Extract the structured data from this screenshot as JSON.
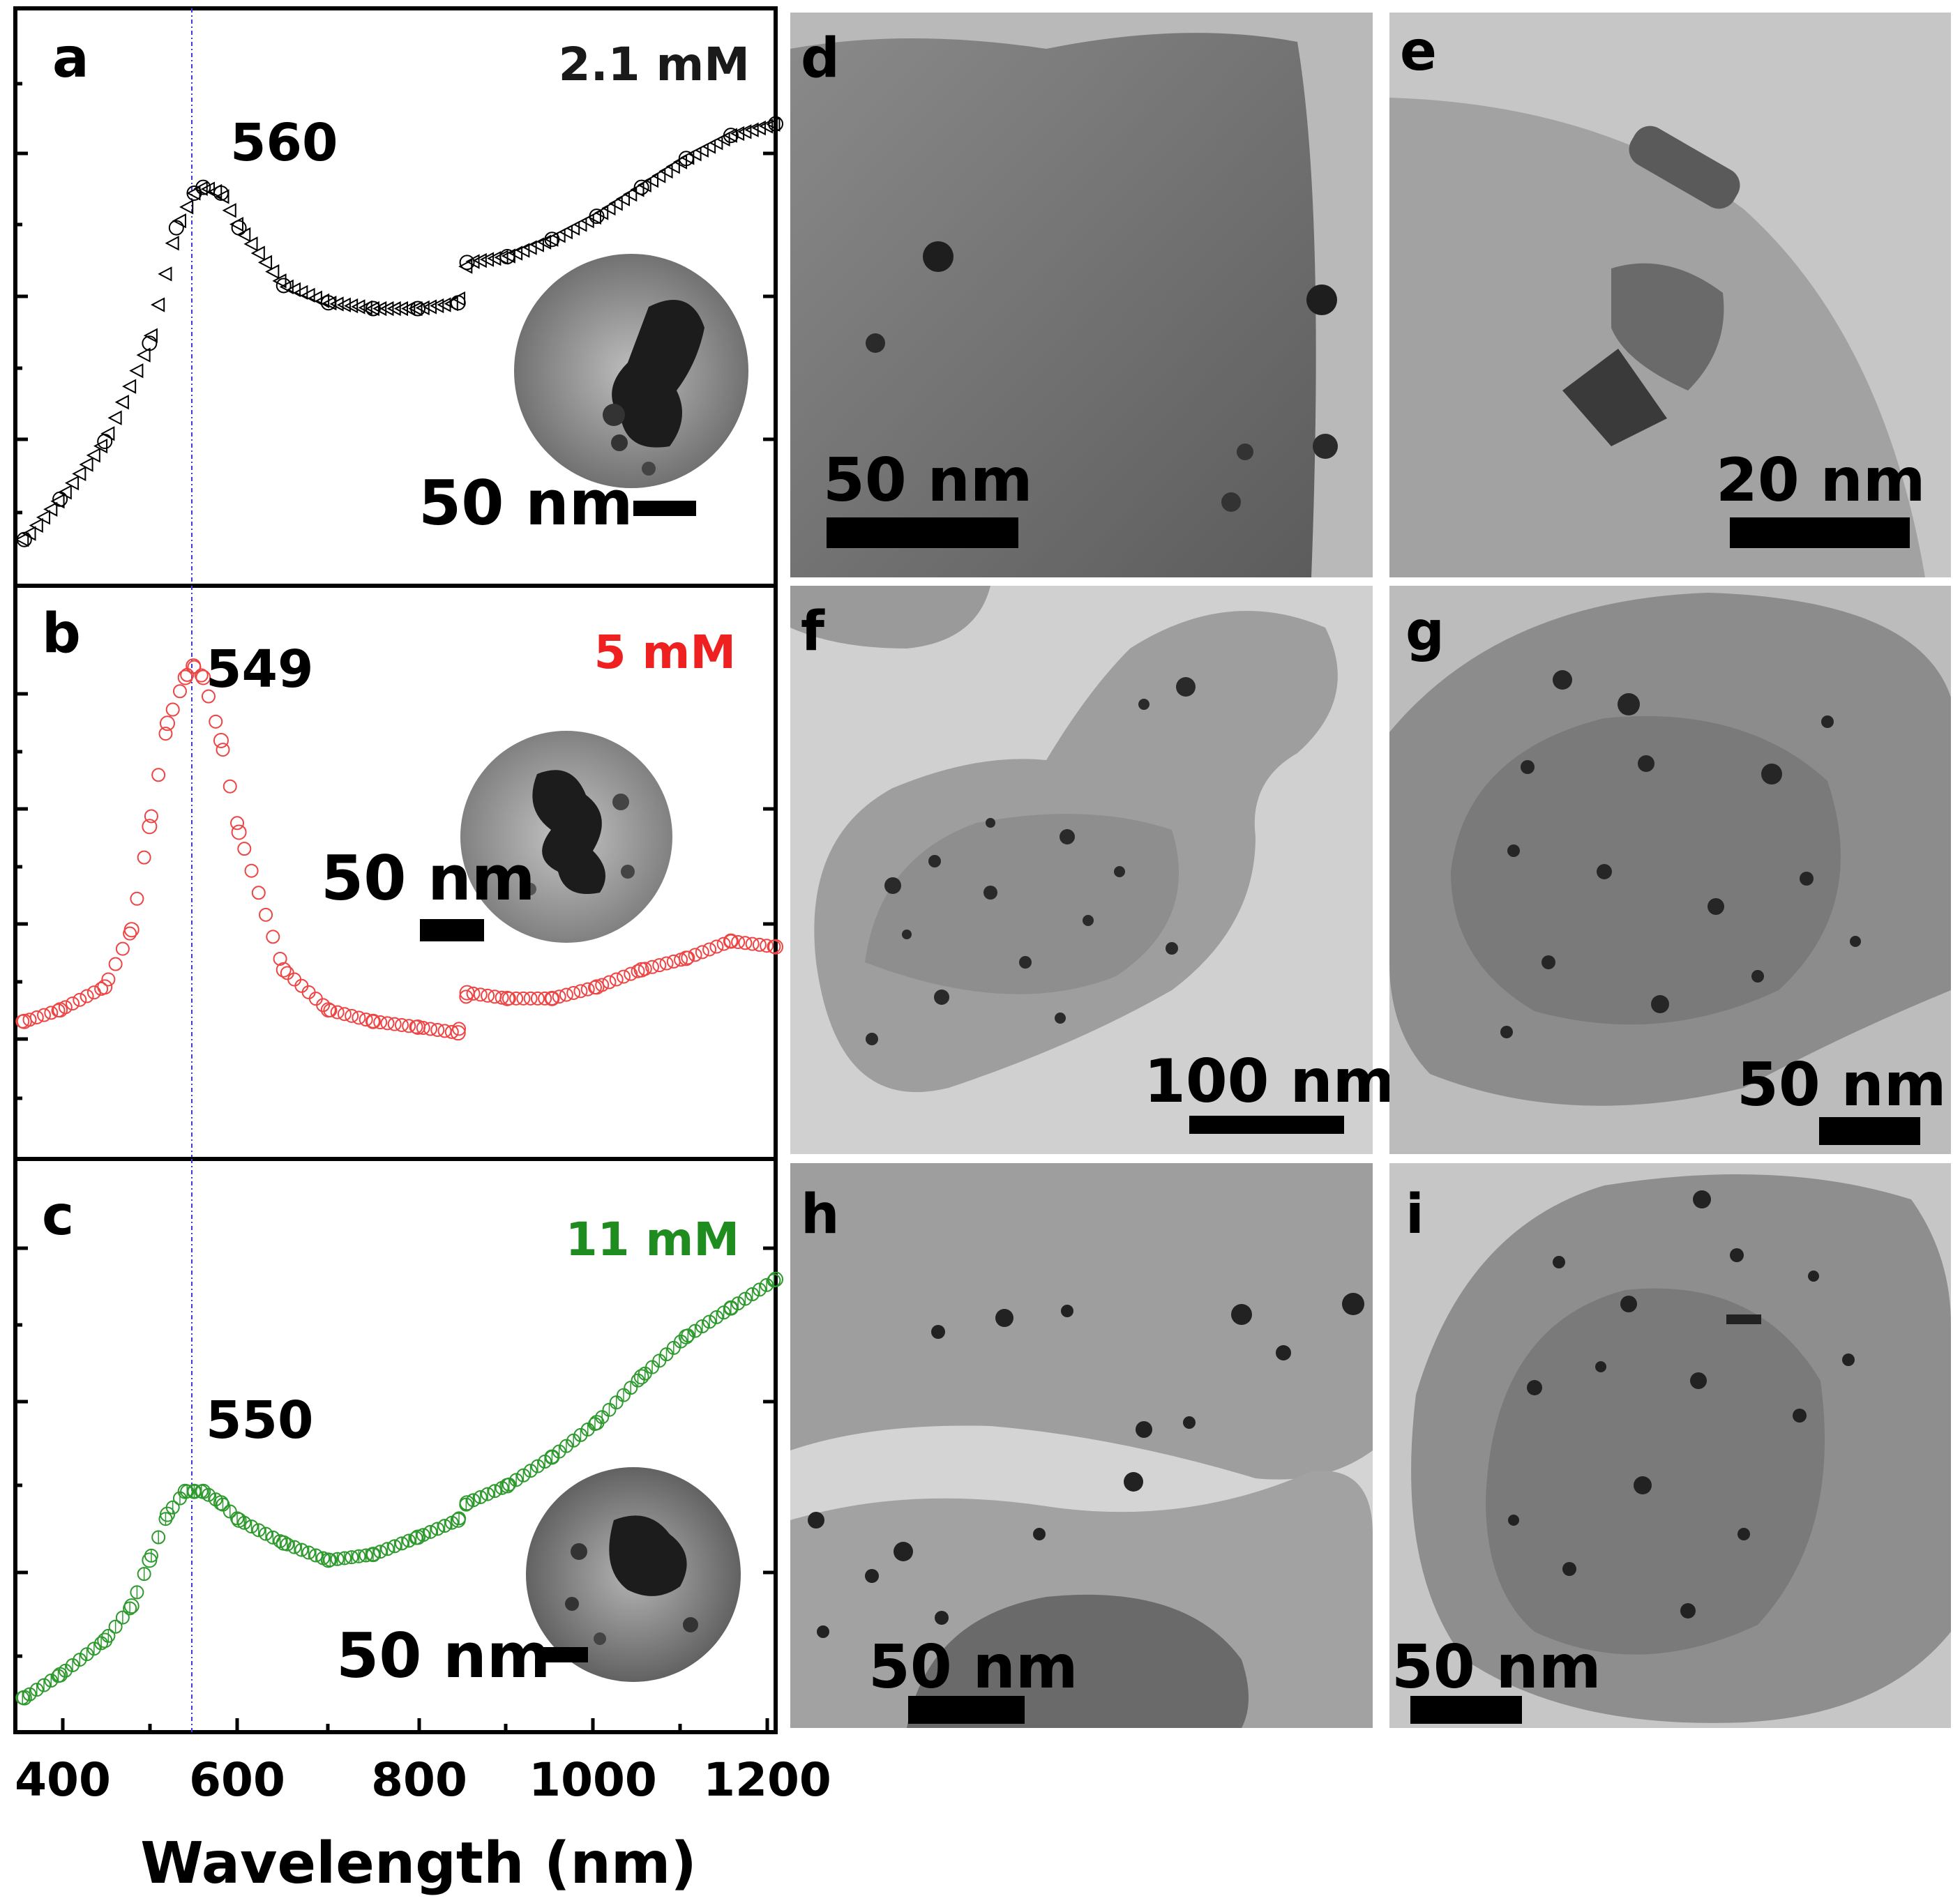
{
  "figure": {
    "xlabel": "Wavelength (nm)",
    "x_ticks": [
      "400",
      "600",
      "800",
      "1000",
      "1200"
    ]
  },
  "chart_data": [
    {
      "type": "scatter",
      "panel": "a",
      "concentration": "2.1 mM",
      "peak_label": "560",
      "inset_scale": "50 nm",
      "marker": "triangle-left",
      "color": "#000000",
      "xlabel": "Wavelength (nm)",
      "xlim": [
        350,
        1200
      ],
      "ylim": [
        0,
        1
      ],
      "x": [
        360,
        400,
        450,
        500,
        530,
        550,
        560,
        580,
        600,
        650,
        700,
        750,
        800,
        845,
        855,
        900,
        950,
        1000,
        1050,
        1100,
        1150,
        1200
      ],
      "y": [
        0.08,
        0.15,
        0.25,
        0.42,
        0.62,
        0.68,
        0.69,
        0.68,
        0.62,
        0.52,
        0.49,
        0.48,
        0.48,
        0.49,
        0.56,
        0.57,
        0.6,
        0.64,
        0.69,
        0.74,
        0.78,
        0.8
      ]
    },
    {
      "type": "scatter",
      "panel": "b",
      "concentration": "5 mM",
      "peak_label": "549",
      "inset_scale": "50 nm",
      "marker": "circle",
      "color": "#ef4444",
      "xlabel": "Wavelength (nm)",
      "xlim": [
        350,
        1200
      ],
      "ylim": [
        0,
        1
      ],
      "x": [
        360,
        400,
        450,
        480,
        500,
        520,
        540,
        549,
        560,
        580,
        600,
        650,
        700,
        750,
        800,
        845,
        855,
        900,
        950,
        1000,
        1050,
        1100,
        1150,
        1200
      ],
      "y": [
        0.24,
        0.26,
        0.3,
        0.4,
        0.58,
        0.76,
        0.84,
        0.86,
        0.84,
        0.73,
        0.57,
        0.33,
        0.26,
        0.24,
        0.23,
        0.22,
        0.29,
        0.28,
        0.28,
        0.3,
        0.33,
        0.35,
        0.38,
        0.37
      ]
    },
    {
      "type": "scatter",
      "panel": "c",
      "concentration": "11 mM",
      "peak_label": "550",
      "inset_scale": "50 nm",
      "marker": "circle-cross",
      "color": "#2e9a2e",
      "xlabel": "Wavelength (nm)",
      "xlim": [
        350,
        1200
      ],
      "ylim": [
        0,
        1
      ],
      "x": [
        360,
        400,
        450,
        480,
        500,
        520,
        540,
        550,
        560,
        580,
        600,
        650,
        700,
        750,
        800,
        845,
        855,
        900,
        950,
        1000,
        1050,
        1100,
        1150,
        1200
      ],
      "y": [
        0.06,
        0.1,
        0.16,
        0.22,
        0.3,
        0.38,
        0.42,
        0.42,
        0.42,
        0.4,
        0.37,
        0.33,
        0.3,
        0.31,
        0.34,
        0.37,
        0.4,
        0.43,
        0.48,
        0.54,
        0.62,
        0.69,
        0.74,
        0.79
      ]
    }
  ],
  "micrographs": [
    {
      "panel": "d",
      "scale": "50 nm"
    },
    {
      "panel": "e",
      "scale": "20 nm"
    },
    {
      "panel": "f",
      "scale": "100 nm"
    },
    {
      "panel": "g",
      "scale": "50 nm"
    },
    {
      "panel": "h",
      "scale": "50 nm"
    },
    {
      "panel": "i",
      "scale": "50 nm"
    }
  ]
}
